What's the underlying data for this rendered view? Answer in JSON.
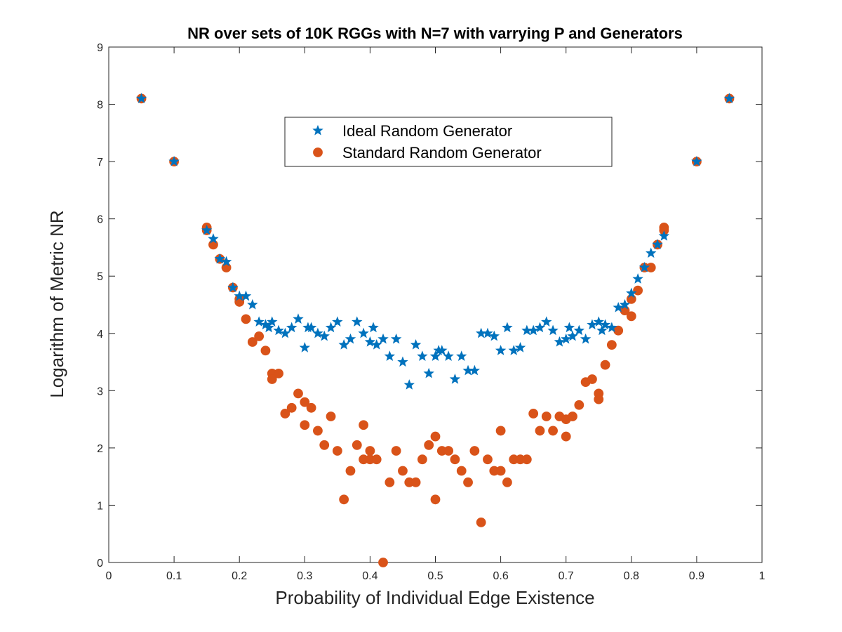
{
  "chart_data": {
    "type": "scatter",
    "title": "NR over sets of 10K RGGs with N=7 with varrying P and Generators",
    "xlabel": "Probability of Individual Edge Existence",
    "ylabel": "Logarithm of Metric NR",
    "xlim": [
      0,
      1
    ],
    "ylim": [
      0,
      9
    ],
    "xticks": [
      0,
      0.1,
      0.2,
      0.3,
      0.4,
      0.5,
      0.6,
      0.7,
      0.8,
      0.9,
      1
    ],
    "xtick_labels": [
      "0",
      "0.1",
      "0.2",
      "0.3",
      "0.4",
      "0.5",
      "0.6",
      "0.7",
      "0.8",
      "0.9",
      "1"
    ],
    "yticks": [
      0,
      1,
      2,
      3,
      4,
      5,
      6,
      7,
      8,
      9
    ],
    "ytick_labels": [
      "0",
      "1",
      "2",
      "3",
      "4",
      "5",
      "6",
      "7",
      "8",
      "9"
    ],
    "grid": false,
    "legend_position": "top-center",
    "series": [
      {
        "name": "Ideal Random Generator",
        "marker": "star",
        "color": "#0072BD",
        "x": [
          0.05,
          0.1,
          0.15,
          0.16,
          0.17,
          0.18,
          0.19,
          0.2,
          0.21,
          0.22,
          0.23,
          0.24,
          0.245,
          0.25,
          0.26,
          0.27,
          0.28,
          0.29,
          0.3,
          0.305,
          0.31,
          0.32,
          0.33,
          0.34,
          0.35,
          0.36,
          0.37,
          0.38,
          0.39,
          0.4,
          0.405,
          0.41,
          0.42,
          0.43,
          0.44,
          0.45,
          0.46,
          0.47,
          0.48,
          0.49,
          0.5,
          0.505,
          0.51,
          0.52,
          0.53,
          0.54,
          0.55,
          0.56,
          0.57,
          0.58,
          0.59,
          0.6,
          0.61,
          0.62,
          0.63,
          0.64,
          0.65,
          0.66,
          0.67,
          0.68,
          0.69,
          0.7,
          0.705,
          0.71,
          0.72,
          0.73,
          0.74,
          0.75,
          0.755,
          0.76,
          0.77,
          0.78,
          0.79,
          0.8,
          0.81,
          0.82,
          0.83,
          0.84,
          0.85,
          0.9,
          0.95
        ],
        "y": [
          8.1,
          7.0,
          5.8,
          5.65,
          5.3,
          5.25,
          4.8,
          4.65,
          4.65,
          4.5,
          4.2,
          4.15,
          4.1,
          4.2,
          4.05,
          4.0,
          4.1,
          4.25,
          3.75,
          4.1,
          4.1,
          4.0,
          3.95,
          4.1,
          4.2,
          3.8,
          3.9,
          4.2,
          4.0,
          3.85,
          4.1,
          3.8,
          3.9,
          3.6,
          3.9,
          3.5,
          3.1,
          3.8,
          3.6,
          3.3,
          3.6,
          3.7,
          3.7,
          3.6,
          3.2,
          3.6,
          3.35,
          3.35,
          4.0,
          4.0,
          3.95,
          3.7,
          4.1,
          3.7,
          3.75,
          4.05,
          4.05,
          4.1,
          4.2,
          4.05,
          3.85,
          3.9,
          4.1,
          3.95,
          4.05,
          3.9,
          4.15,
          4.2,
          4.05,
          4.15,
          4.1,
          4.45,
          4.5,
          4.7,
          4.95,
          5.15,
          5.4,
          5.55,
          5.7,
          7.0,
          8.1
        ]
      },
      {
        "name": "Standard Random Generator",
        "marker": "circle",
        "color": "#D95319",
        "x": [
          0.05,
          0.1,
          0.15,
          0.15,
          0.16,
          0.17,
          0.18,
          0.19,
          0.2,
          0.2,
          0.21,
          0.22,
          0.23,
          0.24,
          0.25,
          0.25,
          0.26,
          0.27,
          0.28,
          0.29,
          0.3,
          0.3,
          0.31,
          0.32,
          0.33,
          0.34,
          0.35,
          0.36,
          0.37,
          0.38,
          0.39,
          0.39,
          0.4,
          0.4,
          0.41,
          0.42,
          0.43,
          0.44,
          0.45,
          0.46,
          0.47,
          0.48,
          0.49,
          0.5,
          0.5,
          0.51,
          0.52,
          0.53,
          0.54,
          0.55,
          0.56,
          0.57,
          0.58,
          0.59,
          0.6,
          0.6,
          0.61,
          0.62,
          0.63,
          0.64,
          0.65,
          0.66,
          0.67,
          0.68,
          0.69,
          0.7,
          0.7,
          0.71,
          0.72,
          0.73,
          0.74,
          0.75,
          0.75,
          0.76,
          0.77,
          0.78,
          0.79,
          0.8,
          0.8,
          0.81,
          0.82,
          0.83,
          0.84,
          0.85,
          0.85,
          0.9,
          0.95
        ],
        "y": [
          8.1,
          7.0,
          5.85,
          5.8,
          5.55,
          5.3,
          5.15,
          4.8,
          4.6,
          4.55,
          4.25,
          3.85,
          3.95,
          3.7,
          3.3,
          3.2,
          3.3,
          2.6,
          2.7,
          2.95,
          2.8,
          2.4,
          2.7,
          2.3,
          2.05,
          2.55,
          1.95,
          1.1,
          1.6,
          2.05,
          2.4,
          1.8,
          1.95,
          1.8,
          1.8,
          0.0,
          1.4,
          1.95,
          1.6,
          1.4,
          1.4,
          1.8,
          2.05,
          2.2,
          1.1,
          1.95,
          1.95,
          1.8,
          1.6,
          1.4,
          1.95,
          0.7,
          1.8,
          1.6,
          2.3,
          1.6,
          1.4,
          1.8,
          1.8,
          1.8,
          2.6,
          2.3,
          2.55,
          2.3,
          2.55,
          2.5,
          2.2,
          2.55,
          2.75,
          3.15,
          3.2,
          2.95,
          2.85,
          3.45,
          3.8,
          4.05,
          4.4,
          4.6,
          4.3,
          4.75,
          5.15,
          5.15,
          5.55,
          5.85,
          5.8,
          7.0,
          8.1
        ]
      }
    ]
  }
}
